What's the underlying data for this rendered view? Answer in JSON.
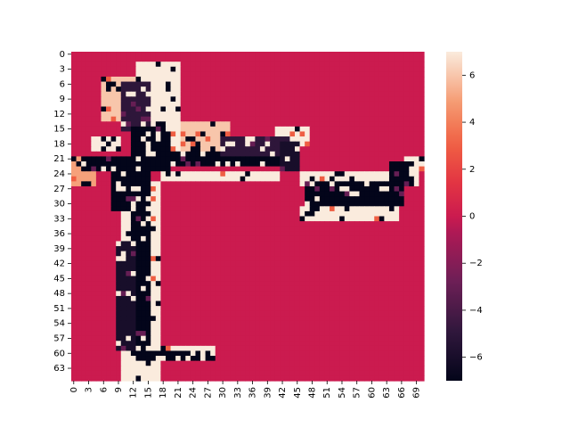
{
  "chart_data": {
    "type": "heatmap",
    "title": "",
    "xlabel": "",
    "ylabel": "",
    "n_rows": 66,
    "n_cols": 71,
    "x_ticks": [
      "0",
      "3",
      "6",
      "9",
      "12",
      "15",
      "18",
      "21",
      "24",
      "27",
      "30",
      "33",
      "36",
      "39",
      "42",
      "45",
      "48",
      "51",
      "54",
      "57",
      "60",
      "63",
      "66",
      "69"
    ],
    "y_ticks": [
      "0",
      "3",
      "6",
      "9",
      "12",
      "15",
      "18",
      "21",
      "24",
      "27",
      "30",
      "33",
      "36",
      "39",
      "42",
      "45",
      "48",
      "51",
      "54",
      "57",
      "60",
      "63"
    ],
    "colorbar": {
      "vmin": -7,
      "vmax": 7,
      "ticks": [
        "-6",
        "-4",
        "-2",
        "0",
        "2",
        "4",
        "6"
      ],
      "colormap": "rocket"
    },
    "background_value": 0,
    "white_outline_value": 7,
    "dark_value": -7,
    "description_of_pattern": "",
    "dark_region_rects": [
      {
        "r0": 21,
        "r1": 24,
        "c0": 2,
        "c1": 20,
        "v": -7
      },
      {
        "r0": 20,
        "r1": 23,
        "c0": 20,
        "c1": 42,
        "v": -7
      },
      {
        "r0": 17,
        "r1": 21,
        "c0": 30,
        "c1": 45,
        "v": -5
      },
      {
        "r0": 24,
        "r1": 32,
        "c0": 8,
        "c1": 12,
        "v": -7
      },
      {
        "r0": 24,
        "r1": 62,
        "c0": 12,
        "c1": 16,
        "v": -7
      },
      {
        "r0": 38,
        "r1": 60,
        "c0": 9,
        "c1": 13,
        "v": -6
      },
      {
        "r0": 60,
        "r1": 62,
        "c0": 16,
        "c1": 26,
        "v": -7
      },
      {
        "r0": 26,
        "r1": 31,
        "c0": 47,
        "c1": 67,
        "v": -7
      },
      {
        "r0": 22,
        "r1": 27,
        "c0": 64,
        "c1": 69,
        "v": -7
      },
      {
        "r0": 26,
        "r1": 33,
        "c0": 47,
        "c1": 50,
        "v": -7
      },
      {
        "r0": 18,
        "r1": 24,
        "c0": 42,
        "c1": 46,
        "v": -6
      },
      {
        "r0": 6,
        "r1": 16,
        "c0": 10,
        "c1": 16,
        "v": -5
      },
      {
        "r0": 15,
        "r1": 21,
        "c0": 12,
        "c1": 20,
        "v": -7
      }
    ],
    "white_region_rects": [
      {
        "r0": 2,
        "r1": 20,
        "c0": 13,
        "c1": 22,
        "v": 7
      },
      {
        "r0": 5,
        "r1": 14,
        "c0": 6,
        "c1": 13,
        "v": 6
      },
      {
        "r0": 17,
        "r1": 20,
        "c0": 4,
        "c1": 10,
        "v": 7
      },
      {
        "r0": 19,
        "r1": 21,
        "c0": 18,
        "c1": 42,
        "v": 7
      },
      {
        "r0": 24,
        "r1": 26,
        "c0": 18,
        "c1": 42,
        "v": 7
      },
      {
        "r0": 15,
        "r1": 19,
        "c0": 41,
        "c1": 48,
        "v": 7
      },
      {
        "r0": 24,
        "r1": 27,
        "c0": 46,
        "c1": 70,
        "v": 7
      },
      {
        "r0": 31,
        "r1": 34,
        "c0": 46,
        "c1": 66,
        "v": 7
      },
      {
        "r0": 21,
        "r1": 24,
        "c0": 67,
        "c1": 71,
        "v": 7
      },
      {
        "r0": 26,
        "r1": 64,
        "c0": 10,
        "c1": 18,
        "v": 7
      },
      {
        "r0": 59,
        "r1": 62,
        "c0": 15,
        "c1": 29,
        "v": 7
      },
      {
        "r0": 63,
        "r1": 66,
        "c0": 10,
        "c1": 18,
        "v": 7
      },
      {
        "r0": 14,
        "r1": 20,
        "c0": 22,
        "c1": 32,
        "v": 6
      },
      {
        "r0": 21,
        "r1": 27,
        "c0": 0,
        "c1": 5,
        "v": 5
      }
    ]
  }
}
